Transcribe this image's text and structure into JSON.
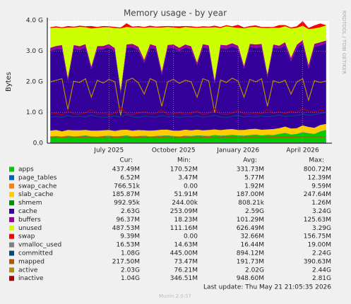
{
  "chart_data": {
    "type": "area",
    "title": "Memory usage - by year",
    "y_label": "Bytes",
    "watermark": "RRDTOOL / TOBI OETIKER",
    "stat_headers": [
      "Cur:",
      "Min:",
      "Avg:",
      "Max:"
    ],
    "footer": "Last update: Thu May 21 21:05:35 2026",
    "version": "Munin 2.0.57",
    "ylim": [
      0,
      4
    ],
    "yticks": [
      {
        "value": 0,
        "label": "0.0"
      },
      {
        "value": 1,
        "label": "1.0 G"
      },
      {
        "value": 2,
        "label": "2.0 G"
      },
      {
        "value": 3,
        "label": "3.0 G"
      },
      {
        "value": 4,
        "label": "4.0 G"
      }
    ],
    "grid": true,
    "categories": [
      null,
      null,
      null,
      null,
      null,
      null,
      null,
      null,
      null,
      null,
      "July 2025",
      null,
      null,
      null,
      null,
      null,
      null,
      null,
      null,
      null,
      null,
      "October 2025",
      null,
      null,
      null,
      null,
      null,
      null,
      null,
      null,
      null,
      null,
      "January 2026",
      null,
      null,
      null,
      null,
      null,
      null,
      null,
      null,
      null,
      null,
      "April 2026",
      null,
      null,
      null,
      null
    ],
    "series": [
      {
        "name": "apps",
        "color": "#00cc00",
        "stacked": true,
        "stats": [
          "437.49M",
          "170.52M",
          "331.73M",
          "800.72M"
        ],
        "values": [
          0.22,
          0.23,
          0.21,
          0.24,
          0.22,
          0.23,
          0.25,
          0.22,
          0.21,
          0.23,
          0.24,
          0.22,
          0.23,
          0.25,
          0.22,
          0.23,
          0.24,
          0.22,
          0.23,
          0.24,
          0.25,
          0.23,
          0.22,
          0.24,
          0.23,
          0.25,
          0.24,
          0.23,
          0.26,
          0.24,
          0.25,
          0.27,
          0.25,
          0.24,
          0.26,
          0.28,
          0.25,
          0.27,
          0.26,
          0.3,
          0.33,
          0.28,
          0.3,
          0.35,
          0.32,
          0.3,
          0.38,
          0.43
        ]
      },
      {
        "name": "page_tables",
        "color": "#0066b3",
        "stacked": true,
        "stats": [
          "6.52M",
          "3.47M",
          "5.77M",
          "12.39M"
        ],
        "values": [
          0.006,
          0.006,
          0.005,
          0.006,
          0.006,
          0.007,
          0.006,
          0.006,
          0.005,
          0.006,
          0.006,
          0.006,
          0.007,
          0.006,
          0.006,
          0.005,
          0.006,
          0.006,
          0.006,
          0.007,
          0.006,
          0.006,
          0.005,
          0.006,
          0.006,
          0.006,
          0.007,
          0.006,
          0.006,
          0.005,
          0.006,
          0.006,
          0.006,
          0.007,
          0.006,
          0.006,
          0.005,
          0.006,
          0.006,
          0.006,
          0.007,
          0.006,
          0.006,
          0.008,
          0.006,
          0.006,
          0.007,
          0.006
        ]
      },
      {
        "name": "swap_cache",
        "color": "#ff8000",
        "stacked": true,
        "stats": [
          "766.51k",
          "0.00",
          "1.92M",
          "9.59M"
        ],
        "values": [
          0.002,
          0.002,
          0.001,
          0.002,
          0.002,
          0.003,
          0.002,
          0.002,
          0.001,
          0.002,
          0.002,
          0.002,
          0.003,
          0.002,
          0.002,
          0.001,
          0.002,
          0.002,
          0.002,
          0.002,
          0.002,
          0.002,
          0.001,
          0.002,
          0.002,
          0.002,
          0.003,
          0.002,
          0.002,
          0.001,
          0.002,
          0.002,
          0.002,
          0.002,
          0.002,
          0.002,
          0.001,
          0.002,
          0.002,
          0.002,
          0.003,
          0.002,
          0.002,
          0.009,
          0.002,
          0.002,
          0.002,
          0.001
        ]
      },
      {
        "name": "slab_cache",
        "color": "#ffcc00",
        "stacked": true,
        "stats": [
          "185.87M",
          "51.91M",
          "187.00M",
          "247.64M"
        ],
        "values": [
          0.18,
          0.19,
          0.17,
          0.18,
          0.19,
          0.18,
          0.17,
          0.18,
          0.19,
          0.18,
          0.18,
          0.17,
          0.19,
          0.18,
          0.18,
          0.19,
          0.17,
          0.18,
          0.18,
          0.19,
          0.18,
          0.17,
          0.18,
          0.19,
          0.18,
          0.18,
          0.17,
          0.19,
          0.18,
          0.18,
          0.19,
          0.18,
          0.17,
          0.18,
          0.19,
          0.18,
          0.18,
          0.17,
          0.19,
          0.18,
          0.2,
          0.19,
          0.18,
          0.21,
          0.2,
          0.19,
          0.2,
          0.19
        ]
      },
      {
        "name": "shmem",
        "color": "#008f00",
        "stacked": true,
        "stats": [
          "992.95k",
          "244.00k",
          "808.21k",
          "1.26M"
        ],
        "values": [
          0.001,
          0.001,
          0.001,
          0.001,
          0.001,
          0.001,
          0.001,
          0.001,
          0.001,
          0.001,
          0.001,
          0.001,
          0.001,
          0.001,
          0.001,
          0.001,
          0.001,
          0.001,
          0.001,
          0.001,
          0.001,
          0.001,
          0.001,
          0.001,
          0.001,
          0.001,
          0.001,
          0.001,
          0.001,
          0.001,
          0.001,
          0.001,
          0.001,
          0.001,
          0.001,
          0.001,
          0.001,
          0.001,
          0.001,
          0.001,
          0.001,
          0.001,
          0.001,
          0.001,
          0.001,
          0.001,
          0.001,
          0.001
        ]
      },
      {
        "name": "cache",
        "color": "#330099",
        "stacked": true,
        "stats": [
          "2.63G",
          "253.09M",
          "2.59G",
          "3.24G"
        ],
        "values": [
          2.6,
          2.65,
          2.7,
          1.6,
          2.68,
          2.62,
          2.7,
          2.0,
          2.66,
          2.64,
          2.7,
          2.6,
          1.2,
          2.68,
          2.72,
          2.62,
          2.2,
          2.7,
          2.65,
          1.8,
          2.66,
          2.7,
          2.6,
          2.68,
          2.64,
          2.1,
          2.7,
          2.66,
          1.5,
          2.68,
          2.62,
          2.7,
          2.65,
          2.0,
          2.68,
          2.64,
          2.7,
          1.7,
          2.66,
          2.6,
          2.65,
          2.2,
          2.62,
          2.68,
          1.9,
          2.64,
          2.6,
          2.63
        ]
      },
      {
        "name": "buffers",
        "color": "#990099",
        "stacked": true,
        "stats": [
          "96.37M",
          "18.23M",
          "101.29M",
          "125.63M"
        ],
        "values": [
          0.1,
          0.09,
          0.11,
          0.1,
          0.1,
          0.12,
          0.1,
          0.09,
          0.1,
          0.11,
          0.1,
          0.1,
          0.09,
          0.1,
          0.11,
          0.1,
          0.1,
          0.12,
          0.1,
          0.09,
          0.1,
          0.11,
          0.1,
          0.1,
          0.1,
          0.09,
          0.11,
          0.1,
          0.1,
          0.1,
          0.12,
          0.1,
          0.1,
          0.09,
          0.1,
          0.11,
          0.1,
          0.1,
          0.1,
          0.09,
          0.1,
          0.11,
          0.1,
          0.1,
          0.12,
          0.1,
          0.1,
          0.09
        ]
      },
      {
        "name": "unused",
        "color": "#ccff00",
        "stacked": true,
        "stats": [
          "487.53M",
          "111.16M",
          "626.49M",
          "3.29G"
        ],
        "values": [
          0.64,
          0.6,
          0.55,
          1.64,
          0.57,
          0.63,
          0.55,
          1.24,
          0.59,
          0.61,
          0.55,
          0.65,
          2.02,
          0.57,
          0.53,
          0.63,
          1.04,
          0.55,
          0.6,
          1.44,
          0.59,
          0.55,
          0.64,
          0.57,
          0.61,
          1.13,
          0.54,
          0.58,
          1.73,
          0.55,
          0.62,
          0.52,
          0.58,
          1.22,
          0.54,
          0.57,
          0.52,
          1.5,
          0.54,
          0.58,
          0.52,
          0.95,
          0.55,
          0.47,
          1.17,
          0.5,
          0.49,
          0.49
        ]
      },
      {
        "name": "swap",
        "color": "#ff0000",
        "stacked": true,
        "stats": [
          "9.39M",
          "0.00",
          "32.66M",
          "156.75M"
        ],
        "values": [
          0.03,
          0.04,
          0.03,
          0.05,
          0.03,
          0.04,
          0.03,
          0.08,
          0.03,
          0.04,
          0.03,
          0.04,
          0.03,
          0.12,
          0.03,
          0.04,
          0.03,
          0.05,
          0.03,
          0.04,
          0.03,
          0.04,
          0.06,
          0.03,
          0.04,
          0.03,
          0.04,
          0.03,
          0.05,
          0.03,
          0.04,
          0.03,
          0.1,
          0.03,
          0.04,
          0.05,
          0.03,
          0.04,
          0.03,
          0.09,
          0.04,
          0.03,
          0.05,
          0.15,
          0.04,
          0.1,
          0.12,
          0.01
        ]
      },
      {
        "name": "vmalloc_used",
        "color": "#808080",
        "stacked": false,
        "stats": [
          "16.53M",
          "14.63M",
          "16.44M",
          "19.00M"
        ],
        "values": [
          0.016,
          0.016,
          0.016,
          0.016,
          0.016,
          0.016,
          0.016,
          0.016,
          0.016,
          0.016,
          0.016,
          0.016,
          0.016,
          0.016,
          0.016,
          0.016,
          0.016,
          0.016,
          0.016,
          0.016,
          0.016,
          0.016,
          0.016,
          0.016,
          0.016,
          0.016,
          0.016,
          0.016,
          0.016,
          0.016,
          0.016,
          0.016,
          0.016,
          0.016,
          0.016,
          0.016,
          0.016,
          0.016,
          0.016,
          0.016,
          0.016,
          0.016,
          0.016,
          0.016,
          0.016,
          0.016,
          0.016,
          0.016
        ]
      },
      {
        "name": "committed",
        "color": "#00487d",
        "stacked": false,
        "stats": [
          "1.08G",
          "445.00M",
          "894.12M",
          "2.24G"
        ],
        "values": [
          0.85,
          0.87,
          0.84,
          0.9,
          0.86,
          0.88,
          0.85,
          0.92,
          0.87,
          0.84,
          0.86,
          0.89,
          0.85,
          0.93,
          0.86,
          0.84,
          0.88,
          0.87,
          0.85,
          0.9,
          0.86,
          0.88,
          0.84,
          0.87,
          0.86,
          0.89,
          0.85,
          0.87,
          0.91,
          0.86,
          0.84,
          0.88,
          0.9,
          0.86,
          0.87,
          0.85,
          0.89,
          0.86,
          0.88,
          0.92,
          0.87,
          0.89,
          0.9,
          0.95,
          0.91,
          0.93,
          0.97,
          1.0
        ]
      },
      {
        "name": "mapped",
        "color": "#b35a00",
        "stacked": false,
        "stats": [
          "217.50M",
          "73.47M",
          "191.73M",
          "390.63M"
        ],
        "values": [
          0.19,
          0.18,
          0.2,
          0.19,
          0.18,
          0.19,
          0.2,
          0.18,
          0.19,
          0.19,
          0.18,
          0.2,
          0.19,
          0.18,
          0.19,
          0.2,
          0.19,
          0.18,
          0.19,
          0.2,
          0.19,
          0.18,
          0.19,
          0.2,
          0.18,
          0.19,
          0.19,
          0.2,
          0.18,
          0.19,
          0.2,
          0.19,
          0.18,
          0.19,
          0.2,
          0.19,
          0.18,
          0.19,
          0.2,
          0.19,
          0.2,
          0.19,
          0.2,
          0.21,
          0.2,
          0.21,
          0.2,
          0.21
        ]
      },
      {
        "name": "active",
        "color": "#b38f00",
        "stacked": false,
        "stats": [
          "2.03G",
          "76.21M",
          "2.02G",
          "2.44G"
        ],
        "values": [
          2.0,
          2.05,
          2.1,
          1.1,
          2.02,
          1.98,
          2.1,
          1.5,
          2.05,
          1.96,
          2.08,
          2.0,
          0.9,
          2.04,
          2.12,
          1.97,
          1.6,
          2.1,
          2.02,
          1.2,
          2.0,
          2.08,
          1.95,
          2.05,
          2.0,
          1.5,
          2.1,
          2.03,
          1.0,
          2.06,
          1.98,
          2.12,
          2.02,
          1.5,
          2.08,
          2.0,
          2.1,
          1.2,
          2.04,
          1.97,
          2.05,
          1.6,
          2.0,
          2.1,
          1.4,
          2.04,
          1.98,
          2.03
        ]
      },
      {
        "name": "inactive",
        "color": "#b30000",
        "stacked": false,
        "stats": [
          "1.04G",
          "346.51M",
          "948.60M",
          "2.81G"
        ],
        "values": [
          0.95,
          0.98,
          0.92,
          1.05,
          0.96,
          0.94,
          0.99,
          1.1,
          0.95,
          0.97,
          0.93,
          0.98,
          1.15,
          0.96,
          0.94,
          0.99,
          1.02,
          0.95,
          0.97,
          1.08,
          0.94,
          0.96,
          1.0,
          0.95,
          0.98,
          1.05,
          0.93,
          0.97,
          1.12,
          0.96,
          0.94,
          0.99,
          1.06,
          0.97,
          0.95,
          1.0,
          0.96,
          1.1,
          0.98,
          1.02,
          0.97,
          1.04,
          0.99,
          1.12,
          1.05,
          1.0,
          1.08,
          1.04
        ]
      }
    ]
  }
}
